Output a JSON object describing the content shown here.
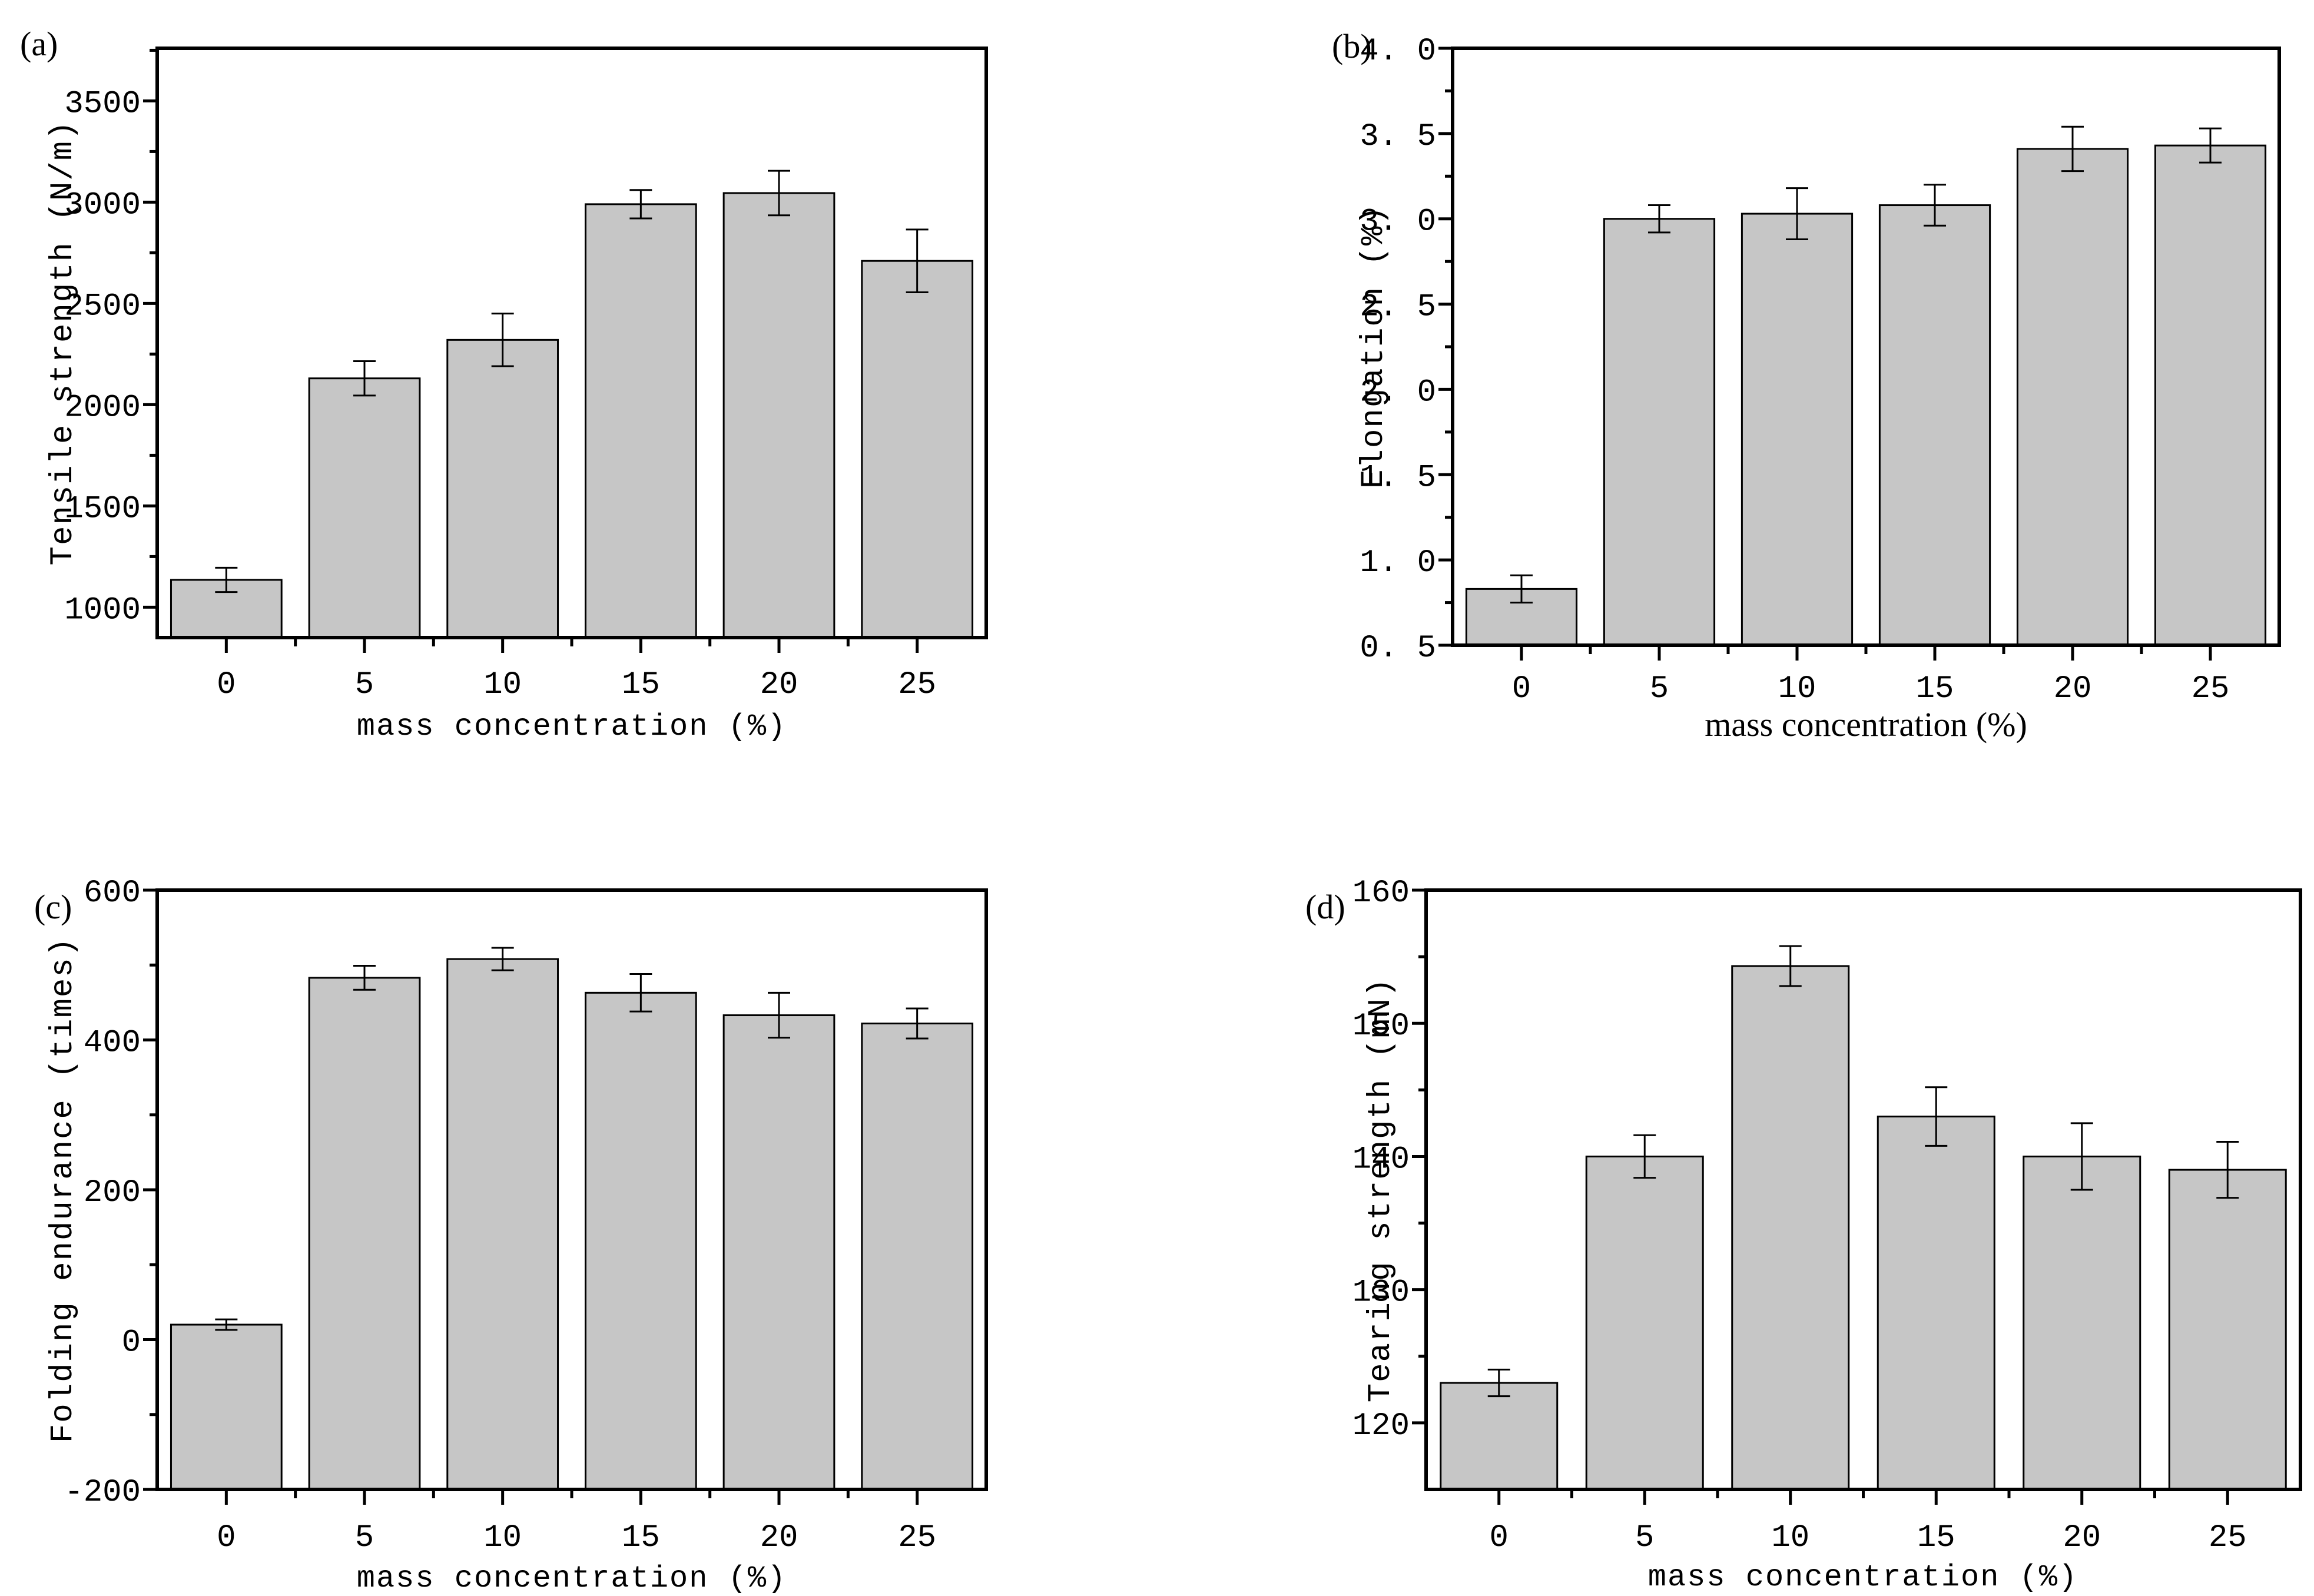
{
  "figure": {
    "background": "#ffffff",
    "bar_fill": "#c6c6c6",
    "bar_edge": "#000000",
    "axis_color": "#000000",
    "text_color": "#000000"
  },
  "chart_data": [
    {
      "id": "a",
      "panel_label": "(a)",
      "type": "bar",
      "title": "",
      "xlabel": "mass concentration (%)",
      "ylabel": "Tensile strength (N/m)",
      "categories": [
        "0",
        "5",
        "10",
        "15",
        "20",
        "25"
      ],
      "values": [
        1135,
        2130,
        2320,
        2990,
        3045,
        2710
      ],
      "errors": [
        60,
        85,
        130,
        70,
        110,
        155
      ],
      "ylim": [
        850,
        3760
      ],
      "yticks": [
        1000,
        1500,
        2000,
        2500,
        3000,
        3500
      ],
      "ytick_labels": [
        "1000",
        "1500",
        "2000",
        "2500",
        "3000",
        "3500"
      ],
      "minor_step": 250,
      "grid": "off",
      "legend": "none"
    },
    {
      "id": "b",
      "panel_label": "(b)",
      "type": "bar",
      "title": "",
      "xlabel": "mass concentration (%)",
      "ylabel": "Elongation (%)",
      "categories": [
        "0",
        "5",
        "10",
        "15",
        "20",
        "25"
      ],
      "values": [
        0.83,
        3.0,
        3.03,
        3.08,
        3.41,
        3.43
      ],
      "errors": [
        0.08,
        0.08,
        0.15,
        0.12,
        0.13,
        0.1
      ],
      "ylim": [
        0.5,
        4.0
      ],
      "yticks": [
        0.5,
        1.0,
        1.5,
        2.0,
        2.5,
        3.0,
        3.5,
        4.0
      ],
      "ytick_labels": [
        "0. 5",
        "1. 0",
        "1. 5",
        "2. 0",
        "2. 5",
        "3. 0",
        "3. 5",
        "4. 0"
      ],
      "minor_step": 0.25,
      "grid": "off",
      "legend": "none"
    },
    {
      "id": "c",
      "panel_label": "(c)",
      "type": "bar",
      "title": "",
      "xlabel": "mass concentration (%)",
      "ylabel": "Folding endurance (times)",
      "categories": [
        "0",
        "5",
        "10",
        "15",
        "20",
        "25"
      ],
      "values": [
        20,
        483,
        508,
        463,
        433,
        422
      ],
      "errors": [
        7,
        16,
        15,
        25,
        30,
        20
      ],
      "ylim": [
        -200,
        600
      ],
      "yticks": [
        -200,
        0,
        200,
        400,
        600
      ],
      "ytick_labels": [
        "-200",
        "0",
        "200",
        "400",
        "600"
      ],
      "minor_step": 100,
      "grid": "off",
      "legend": "none"
    },
    {
      "id": "d",
      "panel_label": "(d)",
      "type": "bar",
      "title": "",
      "xlabel": "mass concentration (%)",
      "ylabel": "Tearing strength (mN)",
      "categories": [
        "0",
        "5",
        "10",
        "15",
        "20",
        "25"
      ],
      "values": [
        123,
        140,
        154.3,
        143,
        140,
        139
      ],
      "errors": [
        1.0,
        1.6,
        1.5,
        2.2,
        2.5,
        2.1
      ],
      "ylim": [
        115,
        160
      ],
      "yticks": [
        120,
        130,
        140,
        150,
        160
      ],
      "ytick_labels": [
        "120",
        "130",
        "140",
        "150",
        "160"
      ],
      "minor_step": 5,
      "grid": "off",
      "legend": "none"
    }
  ]
}
